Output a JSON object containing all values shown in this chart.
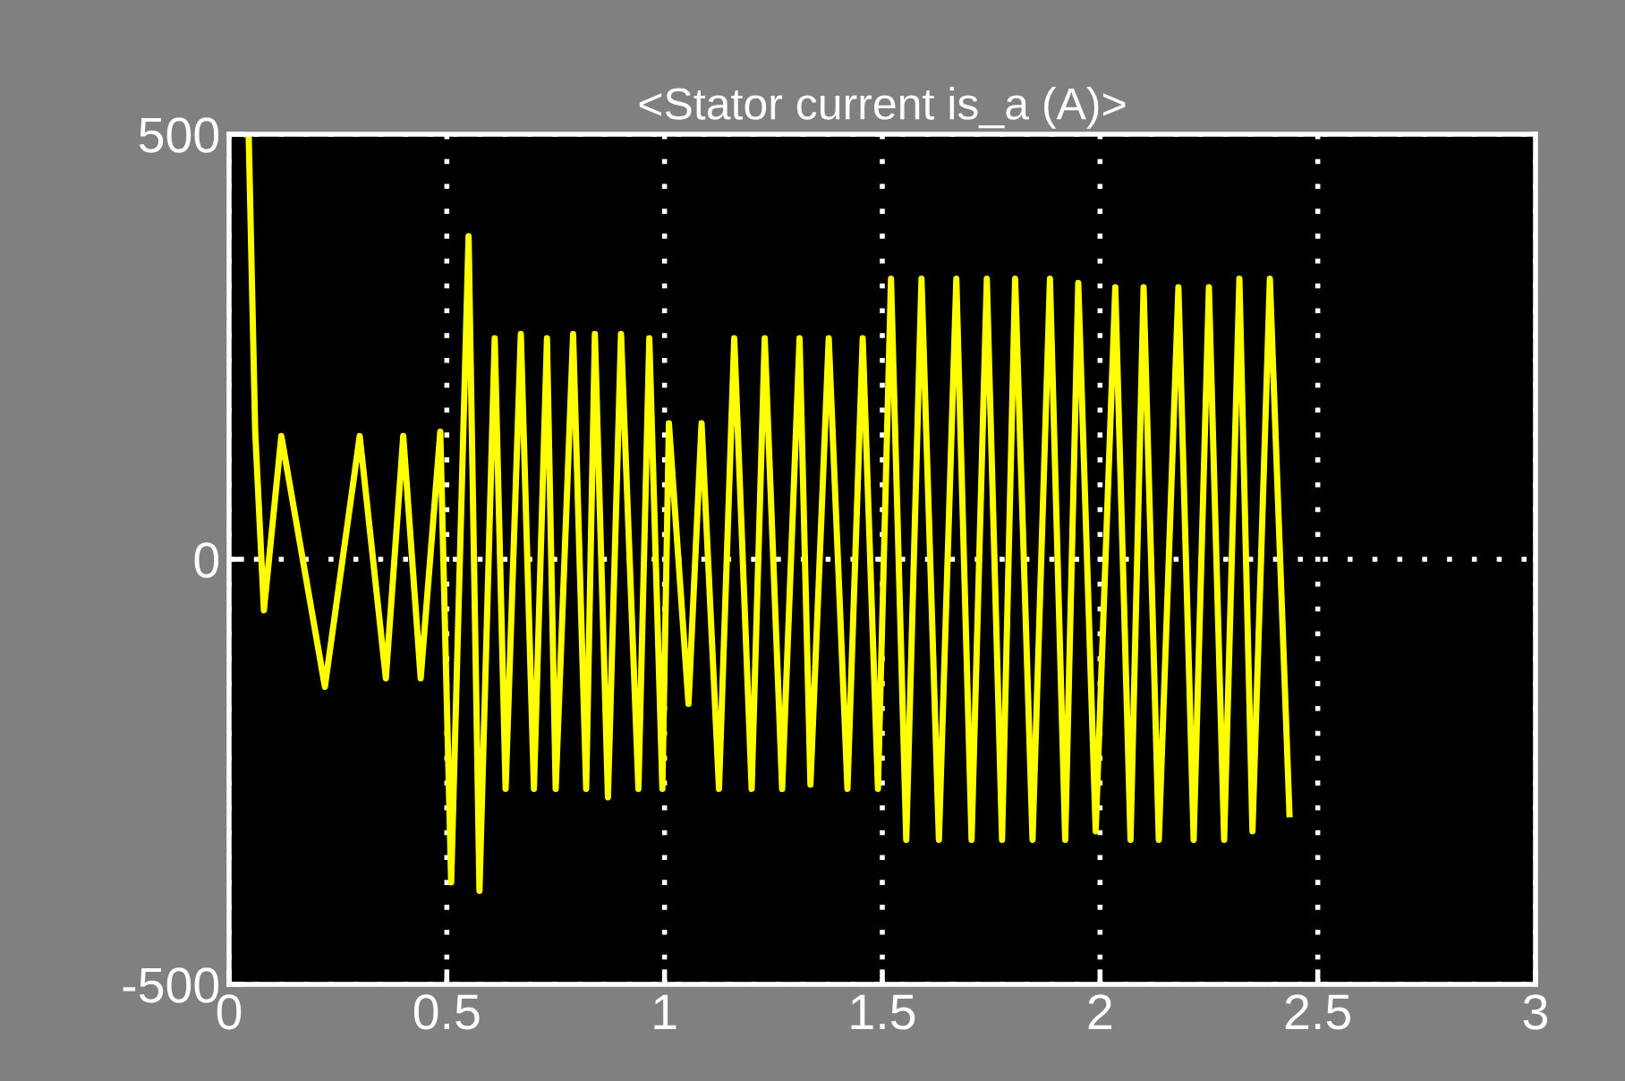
{
  "chart_data": {
    "type": "line",
    "title": "<Stator current is_a (A)>",
    "xlim": [
      0,
      3
    ],
    "xticks": [
      0,
      0.5,
      1,
      1.5,
      2,
      2.5,
      3
    ],
    "ylim": [
      -500,
      500
    ],
    "yticks": [
      -500,
      0,
      500
    ],
    "grid": true,
    "line_style": "solid",
    "marker": "none",
    "series": [
      {
        "color": "#ffff00",
        "x": [
          0.04,
          0.045,
          0.06,
          0.08,
          0.12,
          0.22,
          0.3,
          0.36,
          0.4,
          0.44,
          0.485,
          0.51,
          0.55,
          0.575,
          0.61,
          0.635,
          0.67,
          0.7,
          0.73,
          0.75,
          0.79,
          0.82,
          0.84,
          0.87,
          0.9,
          0.94,
          0.965,
          0.995,
          1.01,
          1.055,
          1.085,
          1.125,
          1.16,
          1.2,
          1.23,
          1.27,
          1.31,
          1.335,
          1.377,
          1.42,
          1.455,
          1.49,
          1.52,
          1.555,
          1.59,
          1.63,
          1.67,
          1.705,
          1.74,
          1.775,
          1.805,
          1.845,
          1.885,
          1.92,
          1.95,
          1.99,
          2.035,
          2.07,
          2.1,
          2.135,
          2.18,
          2.215,
          2.25,
          2.285,
          2.32,
          2.35,
          2.39,
          2.435
        ],
        "values": [
          500,
          500,
          150,
          -60,
          145,
          -150,
          145,
          -140,
          145,
          -140,
          150,
          -380,
          380,
          -390,
          260,
          -270,
          265,
          -270,
          260,
          -270,
          265,
          -270,
          265,
          -280,
          265,
          -270,
          260,
          -270,
          160,
          -170,
          160,
          -270,
          260,
          -270,
          260,
          -270,
          260,
          -265,
          260,
          -270,
          260,
          -270,
          330,
          -330,
          330,
          -330,
          330,
          -330,
          330,
          -330,
          330,
          -330,
          330,
          -330,
          325,
          -320,
          320,
          -330,
          320,
          -330,
          320,
          -330,
          320,
          -330,
          330,
          -320,
          330,
          -300
        ]
      }
    ]
  }
}
